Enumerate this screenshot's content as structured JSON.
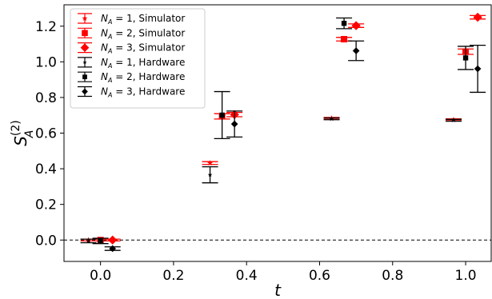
{
  "chart_data": {
    "type": "scatter",
    "x_label": "t",
    "y_label": "S_A^(2)",
    "xlim": [
      -0.1,
      1.07
    ],
    "ylim": [
      -0.12,
      1.32
    ],
    "x_ticks": [
      "0.0",
      "0.2",
      "0.4",
      "0.6",
      "0.8",
      "1.0"
    ],
    "y_ticks": [
      "0.0",
      "0.2",
      "0.4",
      "0.6",
      "0.8",
      "1.0",
      "1.2"
    ],
    "reference_line": {
      "y": 0.0,
      "style": "dashed"
    },
    "legend_position": "upper left",
    "series": [
      {
        "name": "N_A = 1, Simulator",
        "name_parts": {
          "sym": "N",
          "sub": "A",
          "rest": " = 1, Simulator"
        },
        "marker": "star",
        "color": "#ff0000",
        "points": [
          {
            "x": -0.033,
            "y": 0.0,
            "err": 0.005
          },
          {
            "x": 0.3,
            "y": 0.432,
            "err": 0.008
          },
          {
            "x": 0.633,
            "y": 0.683,
            "err": 0.005
          },
          {
            "x": 0.967,
            "y": 0.675,
            "err": 0.005
          }
        ]
      },
      {
        "name": "N_A = 2, Simulator",
        "name_parts": {
          "sym": "N",
          "sub": "A",
          "rest": " = 2, Simulator"
        },
        "marker": "square",
        "color": "#ff0000",
        "points": [
          {
            "x": 0.0,
            "y": 0.0,
            "err": 0.005
          },
          {
            "x": 0.333,
            "y": 0.694,
            "err": 0.015
          },
          {
            "x": 0.667,
            "y": 1.127,
            "err": 0.01
          },
          {
            "x": 1.0,
            "y": 1.057,
            "err": 0.015
          }
        ]
      },
      {
        "name": "N_A = 3, Simulator",
        "name_parts": {
          "sym": "N",
          "sub": "A",
          "rest": " = 3, Simulator"
        },
        "marker": "diamond",
        "color": "#ff0000",
        "points": [
          {
            "x": 0.033,
            "y": 0.0,
            "err": 0.005
          },
          {
            "x": 0.367,
            "y": 0.704,
            "err": 0.012
          },
          {
            "x": 0.7,
            "y": 1.203,
            "err": 0.01
          },
          {
            "x": 1.033,
            "y": 1.25,
            "err": 0.01
          }
        ]
      },
      {
        "name": "N_A = 1, Hardware",
        "name_parts": {
          "sym": "N",
          "sub": "A",
          "rest": " = 1, Hardware"
        },
        "marker": "star",
        "color": "#000000",
        "points": [
          {
            "x": -0.033,
            "y": -0.005,
            "err": 0.01
          },
          {
            "x": 0.3,
            "y": 0.366,
            "err": 0.045
          },
          {
            "x": 0.633,
            "y": 0.68,
            "err": 0.005
          },
          {
            "x": 0.967,
            "y": 0.672,
            "err": 0.005
          }
        ]
      },
      {
        "name": "N_A = 2, Hardware",
        "name_parts": {
          "sym": "N",
          "sub": "A",
          "rest": " = 2, Hardware"
        },
        "marker": "square",
        "color": "#000000",
        "points": [
          {
            "x": 0.0,
            "y": -0.005,
            "err": 0.015
          },
          {
            "x": 0.333,
            "y": 0.701,
            "err": 0.132
          },
          {
            "x": 0.667,
            "y": 1.216,
            "err": 0.03
          },
          {
            "x": 1.0,
            "y": 1.022,
            "err": 0.065
          }
        ]
      },
      {
        "name": "N_A = 3, Hardware",
        "name_parts": {
          "sym": "N",
          "sub": "A",
          "rest": " = 3, Hardware"
        },
        "marker": "diamond",
        "color": "#000000",
        "points": [
          {
            "x": 0.033,
            "y": -0.048,
            "err": 0.01
          },
          {
            "x": 0.367,
            "y": 0.651,
            "err": 0.073
          },
          {
            "x": 0.7,
            "y": 1.062,
            "err": 0.055
          },
          {
            "x": 1.033,
            "y": 0.961,
            "err": 0.132
          }
        ]
      }
    ]
  }
}
